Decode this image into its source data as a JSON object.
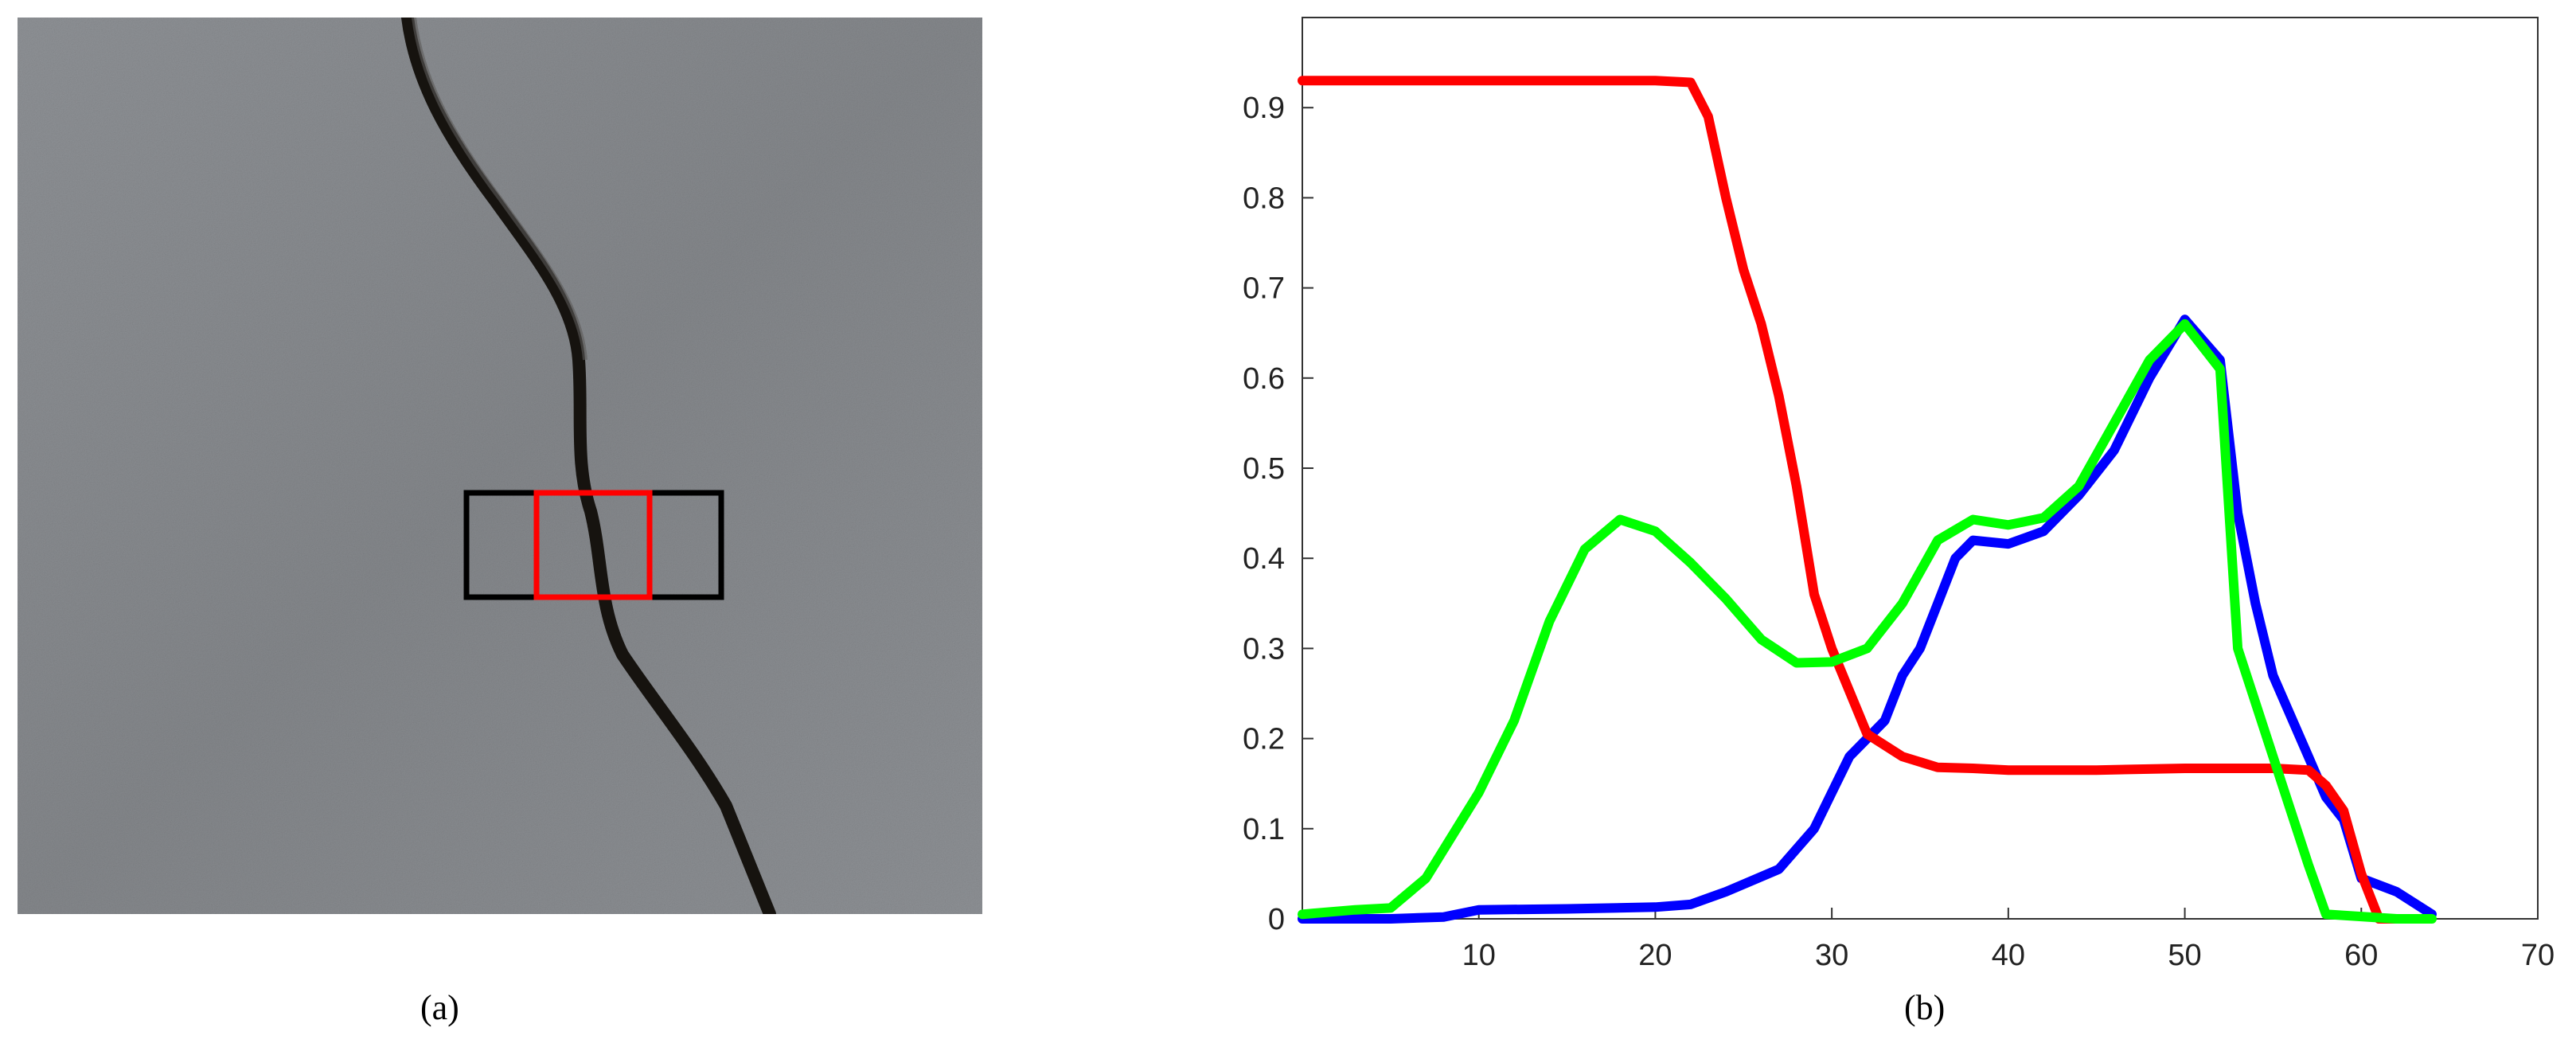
{
  "captions": {
    "a": "(a)",
    "b": "(b)"
  },
  "photo": {
    "description_icon": "concrete-crack-photo",
    "colors": {
      "concrete": "#8a8d91",
      "crack": "#15120f",
      "outer_box": "#000000",
      "inner_box": "#ff0000"
    }
  },
  "chart_data": {
    "type": "line",
    "title": "",
    "xlabel": "",
    "ylabel": "",
    "xlim": [
      0,
      70
    ],
    "ylim": [
      0,
      1.0
    ],
    "xticks": [
      10,
      20,
      30,
      40,
      50,
      60,
      70
    ],
    "yticks": [
      0,
      0.1,
      0.2,
      0.3,
      0.4,
      0.5,
      0.6,
      0.7,
      0.8,
      0.9
    ],
    "grid": false,
    "series": [
      {
        "color": "#0000ff",
        "points": [
          [
            0,
            0
          ],
          [
            5,
            0
          ],
          [
            8,
            0.002
          ],
          [
            10,
            0.01
          ],
          [
            15,
            0.011
          ],
          [
            20,
            0.013
          ],
          [
            22,
            0.016
          ],
          [
            24,
            0.03
          ],
          [
            27,
            0.055
          ],
          [
            29,
            0.1
          ],
          [
            30,
            0.14
          ],
          [
            31,
            0.18
          ],
          [
            33,
            0.22
          ],
          [
            34,
            0.27
          ],
          [
            35,
            0.3
          ],
          [
            36,
            0.35
          ],
          [
            37,
            0.4
          ],
          [
            38,
            0.42
          ],
          [
            40,
            0.416
          ],
          [
            42,
            0.43
          ],
          [
            44,
            0.47
          ],
          [
            46,
            0.52
          ],
          [
            48,
            0.6
          ],
          [
            50,
            0.665
          ],
          [
            52,
            0.62
          ],
          [
            53,
            0.45
          ],
          [
            54,
            0.35
          ],
          [
            55,
            0.27
          ],
          [
            57,
            0.18
          ],
          [
            58,
            0.135
          ],
          [
            59,
            0.11
          ],
          [
            60,
            0.045
          ],
          [
            62,
            0.03
          ],
          [
            64,
            0.005
          ]
        ]
      },
      {
        "color": "#ff0000",
        "points": [
          [
            0,
            0.93
          ],
          [
            5,
            0.93
          ],
          [
            10,
            0.93
          ],
          [
            15,
            0.93
          ],
          [
            20,
            0.93
          ],
          [
            22,
            0.928
          ],
          [
            23,
            0.89
          ],
          [
            24,
            0.8
          ],
          [
            25,
            0.72
          ],
          [
            26,
            0.66
          ],
          [
            27,
            0.58
          ],
          [
            28,
            0.48
          ],
          [
            29,
            0.36
          ],
          [
            30,
            0.3
          ],
          [
            32,
            0.205
          ],
          [
            34,
            0.18
          ],
          [
            36,
            0.168
          ],
          [
            38,
            0.167
          ],
          [
            40,
            0.165
          ],
          [
            45,
            0.165
          ],
          [
            50,
            0.167
          ],
          [
            55,
            0.167
          ],
          [
            57,
            0.165
          ],
          [
            58,
            0.148
          ],
          [
            59,
            0.12
          ],
          [
            60,
            0.05
          ],
          [
            61,
            0
          ],
          [
            62,
            0
          ]
        ]
      },
      {
        "color": "#00ff00",
        "points": [
          [
            0,
            0.005
          ],
          [
            3,
            0.01
          ],
          [
            5,
            0.012
          ],
          [
            7,
            0.045
          ],
          [
            10,
            0.14
          ],
          [
            12,
            0.22
          ],
          [
            14,
            0.33
          ],
          [
            16,
            0.41
          ],
          [
            18,
            0.443
          ],
          [
            20,
            0.43
          ],
          [
            22,
            0.395
          ],
          [
            24,
            0.355
          ],
          [
            26,
            0.31
          ],
          [
            28,
            0.284
          ],
          [
            30,
            0.285
          ],
          [
            32,
            0.3
          ],
          [
            34,
            0.35
          ],
          [
            36,
            0.42
          ],
          [
            38,
            0.443
          ],
          [
            40,
            0.437
          ],
          [
            42,
            0.445
          ],
          [
            44,
            0.48
          ],
          [
            46,
            0.55
          ],
          [
            48,
            0.62
          ],
          [
            50,
            0.66
          ],
          [
            52,
            0.61
          ],
          [
            53,
            0.3
          ],
          [
            55,
            0.18
          ],
          [
            57,
            0.06
          ],
          [
            58,
            0.005
          ],
          [
            62,
            0
          ],
          [
            64,
            0
          ]
        ]
      }
    ]
  }
}
